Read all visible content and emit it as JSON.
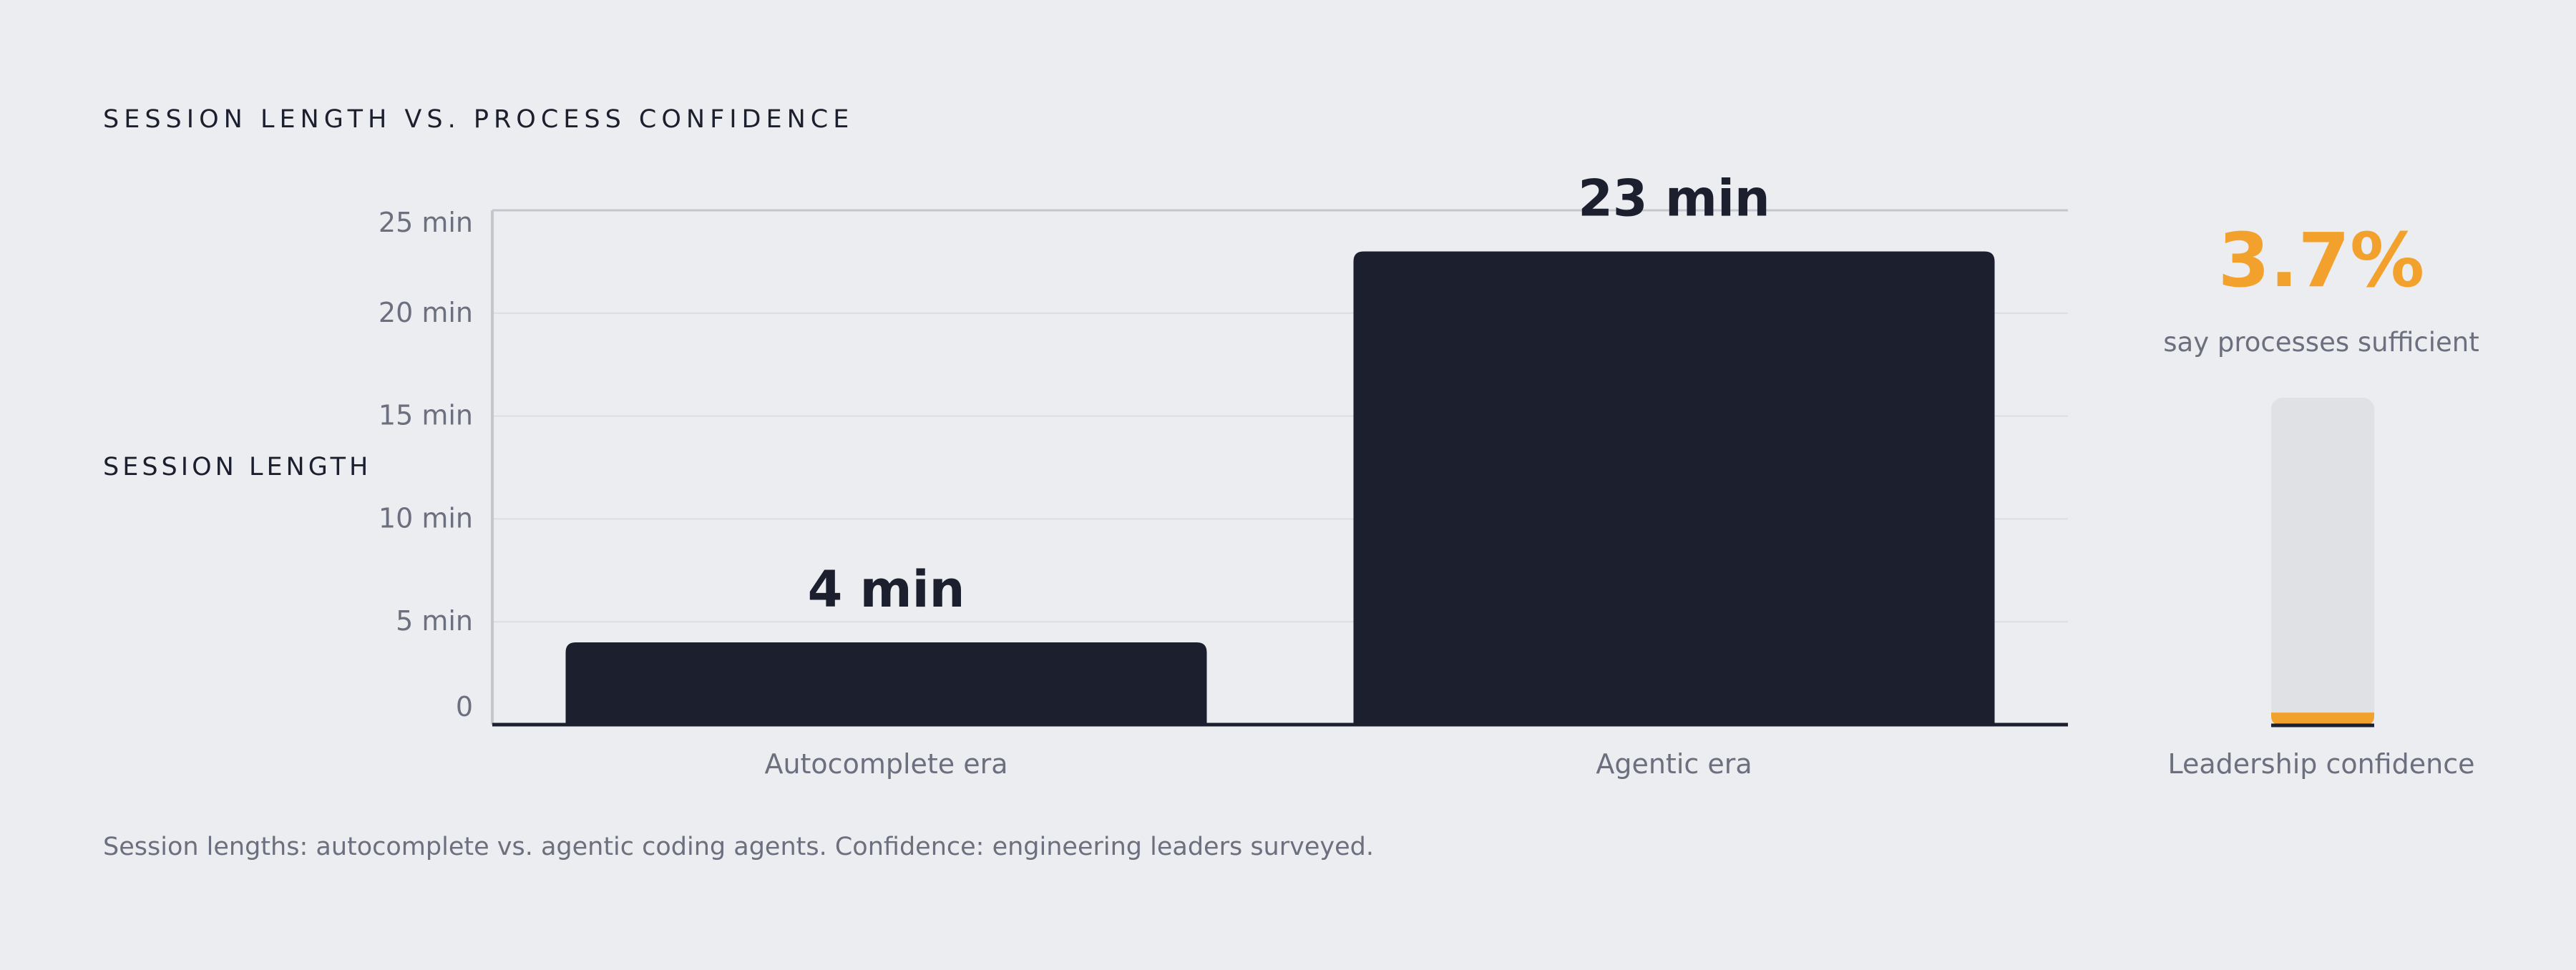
{
  "chart_data": {
    "type": "bar",
    "title": "SESSION LENGTH VS. PROCESS CONFIDENCE",
    "ylabel": "SESSION LENGTH",
    "xlabel": "",
    "categories": [
      "Autocomplete era",
      "Agentic era"
    ],
    "values": [
      4,
      23
    ],
    "value_labels": [
      "4 min",
      "23 min"
    ],
    "yticks": [
      0,
      5,
      10,
      15,
      20,
      25
    ],
    "ytick_labels": [
      "0",
      "5 min",
      "10 min",
      "15 min",
      "20 min",
      "25 min"
    ],
    "ylim": [
      0,
      25
    ],
    "grid": true,
    "bar_color": "#1c1f2e",
    "confidence": {
      "label": "Leadership confidence",
      "value_percent": 3.7,
      "value_label": "3.7%",
      "caption": "say processes sufficient",
      "accent_color": "#f2a22c",
      "track_color": "#e0e1e5"
    },
    "footnote": "Session lengths: autocomplete vs. agentic coding agents. Confidence: engineering leaders surveyed."
  }
}
